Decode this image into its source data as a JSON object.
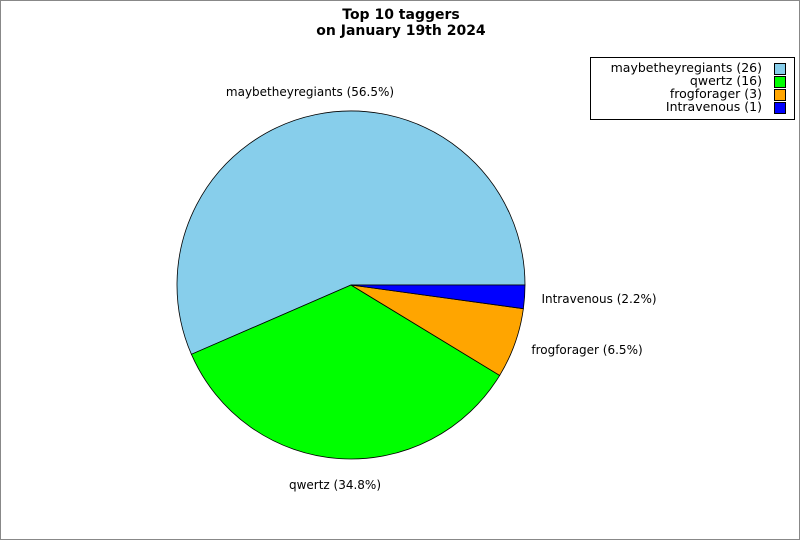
{
  "chart_data": {
    "type": "pie",
    "title": "Top 10 taggers",
    "subtitle": "on January 19th 2024",
    "slices": [
      {
        "label": "maybetheyregiants",
        "value": 26,
        "percent_label": "maybetheyregiants (56.5%)",
        "legend_label": "maybetheyregiants (26)",
        "color": "#87ceeb"
      },
      {
        "label": "qwertz",
        "value": 16,
        "percent_label": "qwertz (34.8%)",
        "legend_label": "qwertz (16)",
        "color": "#00ff00"
      },
      {
        "label": "frogforager",
        "value": 3,
        "percent_label": "frogforager (6.5%)",
        "legend_label": "frogforager (3)",
        "color": "#ffa500"
      },
      {
        "label": "Intravenous",
        "value": 1,
        "percent_label": "Intravenous (2.2%)",
        "legend_label": "Intravenous (1)",
        "color": "#0000ff"
      }
    ],
    "start_angle_deg": 0,
    "direction": "counterclockwise",
    "legend_position": "top-right"
  }
}
